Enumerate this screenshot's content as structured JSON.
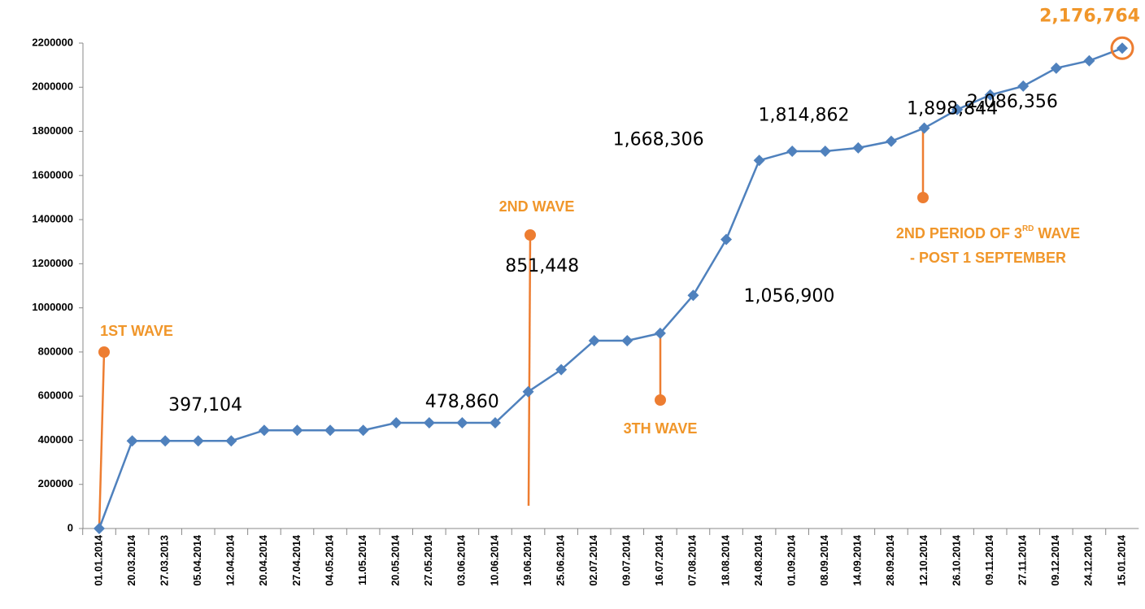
{
  "chart_data": {
    "type": "line",
    "categories": [
      "01.01.2014",
      "20.03.2014",
      "27.03.2013",
      "05.04.2014",
      "12.04.2014",
      "20.04.2014",
      "27.04.2014",
      "04.05.2014",
      "11.05.2014",
      "20.05.2014",
      "27.05.2014",
      "03.06.2014",
      "10.06.2014",
      "19.06.2014",
      "25.06.2014",
      "02.07.2014",
      "09.07.2014",
      "16.07.2014",
      "07.08.2014",
      "18.08.2014",
      "24.08.2014",
      "01.09.2014",
      "08.09.2014",
      "14.09.2014",
      "28.09.2014",
      "12.10.2014",
      "26.10.2014",
      "09.11.2014",
      "27.11.2014",
      "09.12.2014",
      "24.12.2014",
      "15.01.2014"
    ],
    "series": [
      {
        "color": "#4f81bd",
        "values": [
          0,
          397104,
          397104,
          397104,
          397104,
          445000,
          445000,
          445000,
          445000,
          478860,
          478860,
          478860,
          478860,
          620000,
          720000,
          851448,
          851448,
          885000,
          1056900,
          1310000,
          1668306,
          1710000,
          1710000,
          1725000,
          1755000,
          1814862,
          1898844,
          1965000,
          2005000,
          2086356,
          2120000,
          2176764
        ],
        "value_labels": [
          null,
          "397,104",
          null,
          null,
          null,
          null,
          null,
          null,
          null,
          "478,860",
          null,
          null,
          null,
          null,
          null,
          "851,448",
          null,
          null,
          "1,056,900",
          null,
          "1,668,306",
          null,
          null,
          null,
          null,
          "1,814,862",
          "1,898,844",
          null,
          null,
          "2,086,356",
          null,
          "2,176,764"
        ]
      }
    ],
    "ylim": [
      0,
      2200000
    ],
    "yticks": [
      0,
      200000,
      400000,
      600000,
      800000,
      1000000,
      1200000,
      1400000,
      1600000,
      1800000,
      2000000,
      2200000
    ],
    "annotations": [
      {
        "text": "1ST WAVE"
      },
      {
        "text": "2ND WAVE"
      },
      {
        "text": "3TH WAVE"
      },
      {
        "text": "2ND PERIOD OF 3",
        "superscript": "RD",
        "text_end": " WAVE",
        "text2": "- POST 1  SEPTEMBER"
      }
    ]
  }
}
